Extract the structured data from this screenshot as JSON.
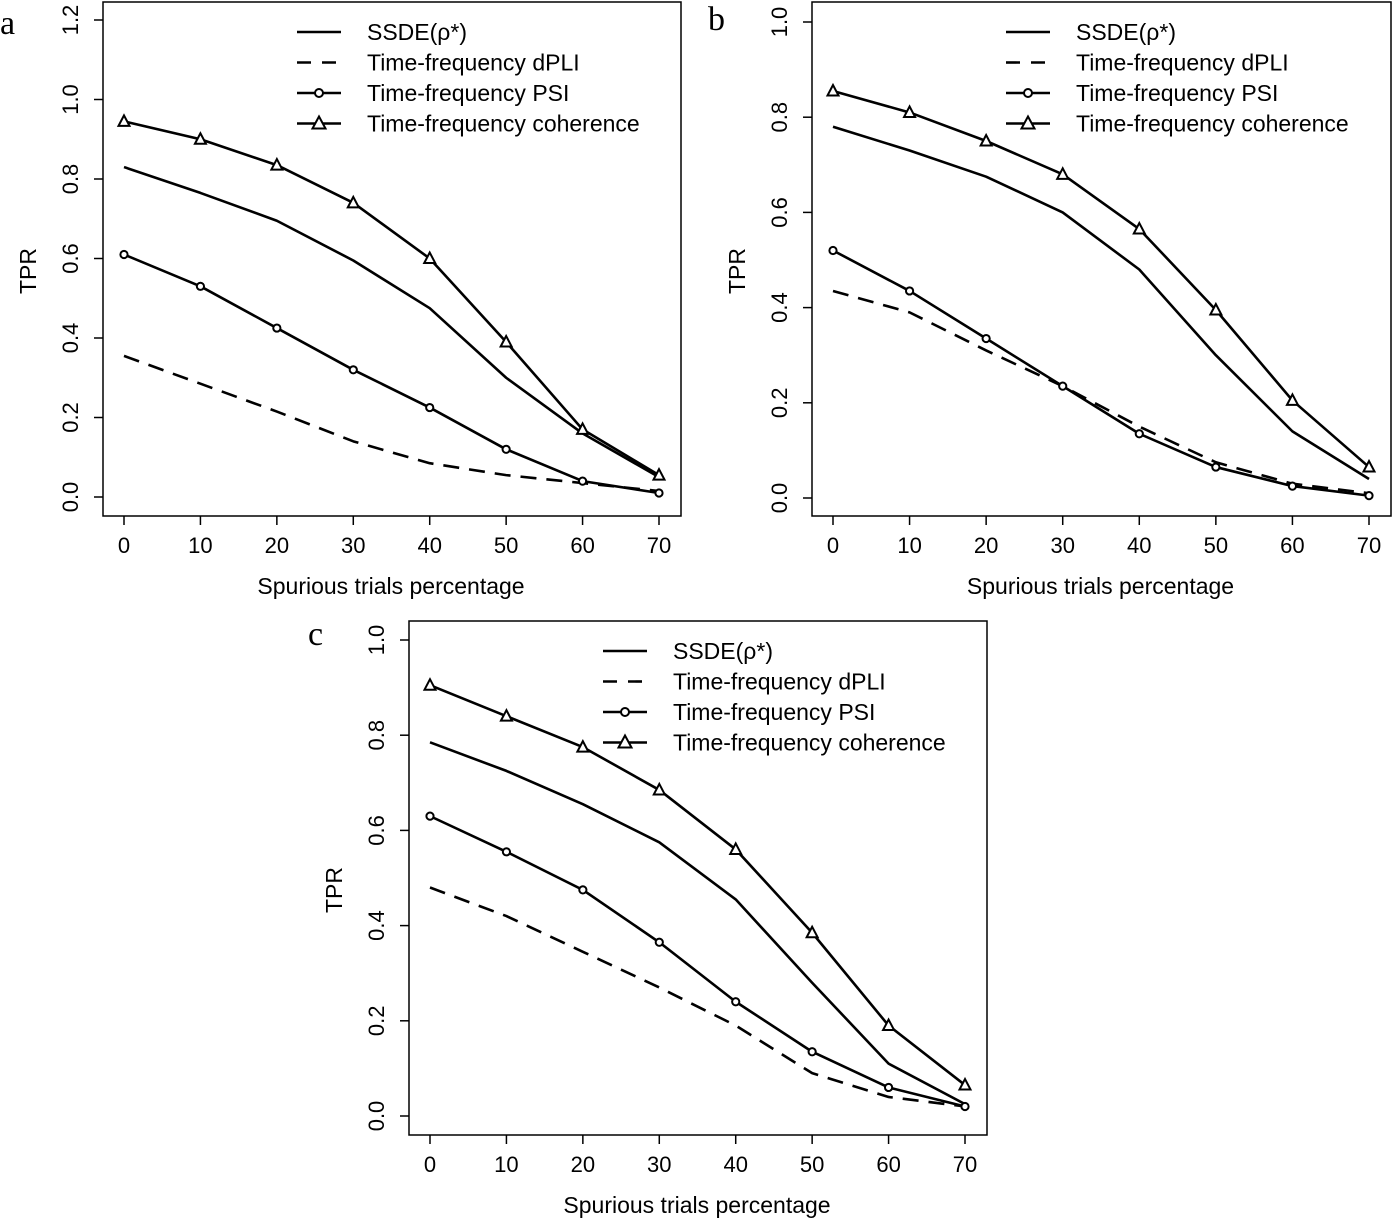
{
  "figure": {
    "panels": [
      "a",
      "b",
      "c"
    ]
  },
  "chart_data": [
    {
      "panel": "a",
      "type": "line",
      "xlabel": "Spurious trials percentage",
      "ylabel": "TPR",
      "x": [
        0,
        10,
        20,
        30,
        40,
        50,
        60,
        70
      ],
      "xticks": [
        "0",
        "10",
        "20",
        "30",
        "40",
        "50",
        "60",
        "70"
      ],
      "ylim": [
        0,
        1.2
      ],
      "yticks": [
        "0.0",
        "0.2",
        "0.4",
        "0.6",
        "0.8",
        "1.0",
        "1.2"
      ],
      "ytick_values": [
        0,
        0.2,
        0.4,
        0.6,
        0.8,
        1.0,
        1.2
      ],
      "legend_position": "top-right",
      "series": [
        {
          "name": "SSDE(ρ*)",
          "style": "solid",
          "marker": "none",
          "values": [
            0.83,
            0.765,
            0.695,
            0.595,
            0.475,
            0.3,
            0.16,
            0.05
          ]
        },
        {
          "name": "Time-frequency dPLI",
          "style": "dashed",
          "marker": "none",
          "values": [
            0.355,
            0.285,
            0.215,
            0.14,
            0.085,
            0.055,
            0.035,
            0.015
          ]
        },
        {
          "name": "Time-frequency PSI",
          "style": "solid",
          "marker": "circle",
          "values": [
            0.61,
            0.53,
            0.425,
            0.32,
            0.225,
            0.12,
            0.04,
            0.01
          ]
        },
        {
          "name": "Time-frequency coherence",
          "style": "solid",
          "marker": "triangle",
          "values": [
            0.945,
            0.9,
            0.835,
            0.74,
            0.6,
            0.39,
            0.17,
            0.055
          ]
        }
      ]
    },
    {
      "panel": "b",
      "type": "line",
      "xlabel": "Spurious trials percentage",
      "ylabel": "TPR",
      "x": [
        0,
        10,
        20,
        30,
        40,
        50,
        60,
        70
      ],
      "xticks": [
        "0",
        "10",
        "20",
        "30",
        "40",
        "50",
        "60",
        "70"
      ],
      "ylim": [
        0,
        1.0
      ],
      "yticks": [
        "0.0",
        "0.2",
        "0.4",
        "0.6",
        "0.8",
        "1.0"
      ],
      "ytick_values": [
        0,
        0.2,
        0.4,
        0.6,
        0.8,
        1.0
      ],
      "legend_position": "top-right",
      "series": [
        {
          "name": "SSDE(ρ*)",
          "style": "solid",
          "marker": "none",
          "values": [
            0.78,
            0.73,
            0.675,
            0.6,
            0.48,
            0.3,
            0.14,
            0.04
          ]
        },
        {
          "name": "Time-frequency dPLI",
          "style": "dashed",
          "marker": "none",
          "values": [
            0.435,
            0.39,
            0.31,
            0.235,
            0.15,
            0.075,
            0.03,
            0.01
          ]
        },
        {
          "name": "Time-frequency PSI",
          "style": "solid",
          "marker": "circle",
          "values": [
            0.52,
            0.435,
            0.335,
            0.235,
            0.135,
            0.065,
            0.025,
            0.005
          ]
        },
        {
          "name": "Time-frequency coherence",
          "style": "solid",
          "marker": "triangle",
          "values": [
            0.855,
            0.81,
            0.75,
            0.68,
            0.565,
            0.395,
            0.205,
            0.065
          ]
        }
      ]
    },
    {
      "panel": "c",
      "type": "line",
      "xlabel": "Spurious trials percentage",
      "ylabel": "TPR",
      "x": [
        0,
        10,
        20,
        30,
        40,
        50,
        60,
        70
      ],
      "xticks": [
        "0",
        "10",
        "20",
        "30",
        "40",
        "50",
        "60",
        "70"
      ],
      "ylim": [
        0,
        1.0
      ],
      "yticks": [
        "0.0",
        "0.2",
        "0.4",
        "0.6",
        "0.8",
        "1.0"
      ],
      "ytick_values": [
        0,
        0.2,
        0.4,
        0.6,
        0.8,
        1.0
      ],
      "legend_position": "top-right",
      "series": [
        {
          "name": "SSDE(ρ*)",
          "style": "solid",
          "marker": "none",
          "values": [
            0.785,
            0.725,
            0.655,
            0.575,
            0.455,
            0.28,
            0.11,
            0.025
          ]
        },
        {
          "name": "Time-frequency dPLI",
          "style": "dashed",
          "marker": "none",
          "values": [
            0.48,
            0.42,
            0.345,
            0.27,
            0.19,
            0.09,
            0.04,
            0.02
          ]
        },
        {
          "name": "Time-frequency PSI",
          "style": "solid",
          "marker": "circle",
          "values": [
            0.63,
            0.555,
            0.475,
            0.365,
            0.24,
            0.135,
            0.06,
            0.02
          ]
        },
        {
          "name": "Time-frequency coherence",
          "style": "solid",
          "marker": "triangle",
          "values": [
            0.905,
            0.84,
            0.775,
            0.685,
            0.56,
            0.385,
            0.19,
            0.065
          ]
        }
      ]
    }
  ]
}
